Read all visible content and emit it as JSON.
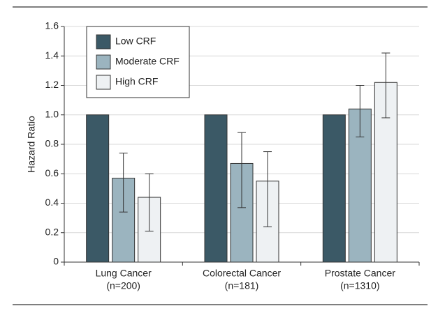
{
  "chart_data": {
    "type": "bar",
    "y_label": "Hazard Ratio",
    "categories": [
      [
        "Lung Cancer",
        "(n=200)"
      ],
      [
        "Colorectal Cancer",
        "(n=181)"
      ],
      [
        "Prostate Cancer",
        "(n=1310)"
      ]
    ],
    "series": [
      {
        "name": "Low CRF",
        "color": "#3b5966",
        "values": [
          1.0,
          1.0,
          1.0
        ],
        "ci_low": [
          null,
          null,
          null
        ],
        "ci_high": [
          null,
          null,
          null
        ]
      },
      {
        "name": "Moderate CRF",
        "color": "#9bb4bf",
        "values": [
          0.57,
          0.67,
          1.04
        ],
        "ci_low": [
          0.34,
          0.37,
          0.85
        ],
        "ci_high": [
          0.74,
          0.88,
          1.2
        ]
      },
      {
        "name": "High CRF",
        "color": "#eef1f3",
        "values": [
          0.44,
          0.55,
          1.22
        ],
        "ci_low": [
          0.21,
          0.24,
          0.98
        ],
        "ci_high": [
          0.6,
          0.75,
          1.42
        ]
      }
    ],
    "ylim": [
      0,
      1.6
    ],
    "yticks": [
      0,
      {
        "value": 0.2,
        "label": "0.2"
      },
      {
        "value": 0.4,
        "label": "0.4"
      },
      {
        "value": 0.6,
        "label": "0.6"
      },
      {
        "value": 0.8,
        "label": "0.8"
      },
      {
        "value": 1.0,
        "label": "1.0"
      },
      {
        "value": 1.2,
        "label": "1.2"
      },
      {
        "value": 1.4,
        "label": "1.4"
      },
      {
        "value": 1.6,
        "label": "1.6"
      }
    ],
    "grid": true,
    "legend": "upper left"
  }
}
